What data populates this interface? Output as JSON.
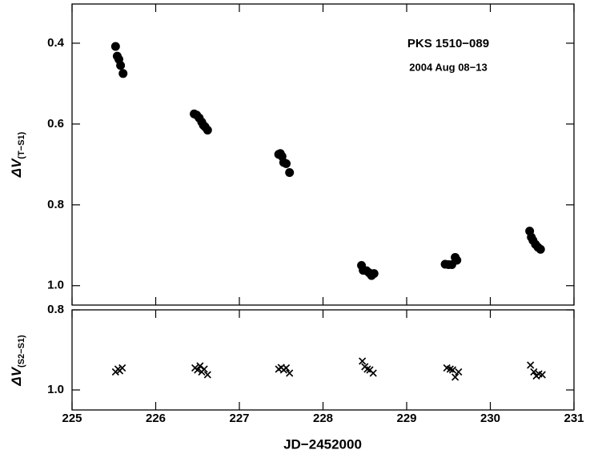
{
  "chart_data": [
    {
      "type": "scatter",
      "marker": "circle",
      "color": "#000000",
      "annotations": [
        "PKS 1510−089",
        "2004 Aug 08−13"
      ],
      "ylabel": "ΔV",
      "ylabel_sub": "(T−S1)",
      "xlim": [
        225,
        231
      ],
      "xticks": [
        225,
        226,
        227,
        228,
        229,
        230,
        231
      ],
      "ylim": [
        1.048,
        0.303
      ],
      "yticks": [
        0.4,
        0.6,
        0.8,
        {
          "value": 1,
          "label": "1.0"
        }
      ],
      "series": [
        {
          "name": "PKS 1510−089",
          "color": "#000000",
          "x": [
            225.52,
            225.54,
            225.56,
            225.58,
            225.61,
            226.46,
            226.49,
            226.52,
            226.55,
            226.57,
            226.59,
            226.62,
            227.47,
            227.49,
            227.51,
            227.53,
            227.56,
            227.6,
            228.46,
            228.48,
            228.52,
            228.55,
            228.58,
            228.61,
            229.46,
            229.5,
            229.54,
            229.58,
            229.6,
            230.47,
            230.49,
            230.51,
            230.54,
            230.57,
            230.6
          ],
          "values": [
            0.408,
            0.432,
            0.44,
            0.455,
            0.475,
            0.575,
            0.578,
            0.585,
            0.595,
            0.603,
            0.607,
            0.615,
            0.675,
            0.673,
            0.68,
            0.695,
            0.698,
            0.72,
            0.95,
            0.962,
            0.963,
            0.968,
            0.975,
            0.97,
            0.947,
            0.948,
            0.948,
            0.93,
            0.937,
            0.865,
            0.88,
            0.888,
            0.898,
            0.905,
            0.91
          ]
        }
      ]
    },
    {
      "type": "scatter",
      "marker": "cross",
      "color": "#000000",
      "xlabel": "JD−2452000",
      "ylabel": "ΔV",
      "ylabel_sub": "(S2−S1)",
      "xlim": [
        225,
        231
      ],
      "xticks": [
        225,
        226,
        227,
        228,
        229,
        230,
        231
      ],
      "ylim": [
        1.05,
        0.8
      ],
      "yticks": [
        0.8,
        {
          "value": 1,
          "label": "1.0"
        }
      ],
      "series": [
        {
          "name": "S2−S1",
          "color": "#000000",
          "x": [
            225.52,
            225.55,
            225.57,
            225.6,
            226.47,
            226.5,
            226.53,
            226.55,
            226.58,
            226.62,
            227.47,
            227.5,
            227.53,
            227.56,
            227.6,
            228.47,
            228.5,
            228.53,
            228.56,
            228.6,
            229.48,
            229.52,
            229.55,
            229.58,
            229.62,
            230.48,
            230.52,
            230.55,
            230.58,
            230.62
          ],
          "values": [
            0.955,
            0.948,
            0.952,
            0.945,
            0.945,
            0.95,
            0.94,
            0.955,
            0.948,
            0.962,
            0.948,
            0.944,
            0.95,
            0.945,
            0.958,
            0.928,
            0.942,
            0.948,
            0.95,
            0.958,
            0.945,
            0.948,
            0.95,
            0.968,
            0.955,
            0.938,
            0.955,
            0.965,
            0.96,
            0.962
          ]
        }
      ]
    }
  ]
}
